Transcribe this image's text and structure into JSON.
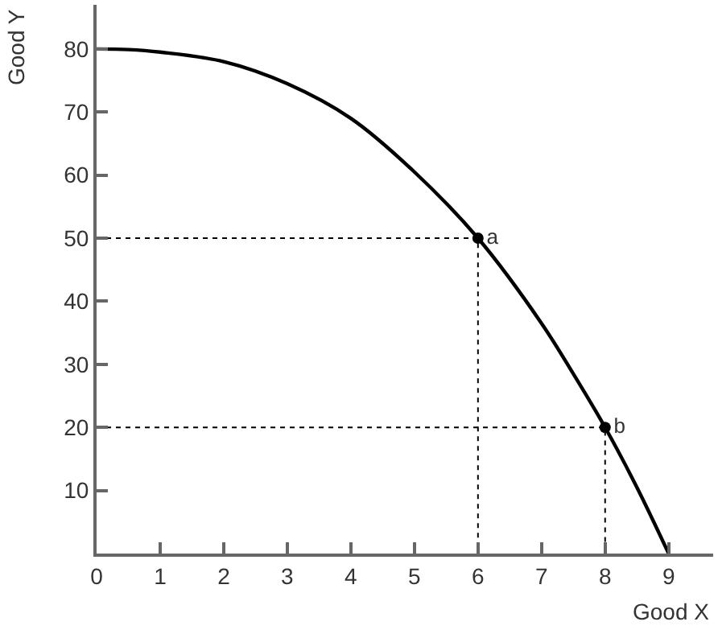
{
  "chart_data": {
    "type": "line",
    "xlabel": "Good X",
    "ylabel": "Good Y",
    "xlim": [
      0,
      9.7
    ],
    "xticks": [
      0,
      1,
      2,
      3,
      4,
      5,
      6,
      7,
      8,
      9
    ],
    "ylim": [
      0,
      87
    ],
    "yticks": [
      10,
      20,
      30,
      40,
      50,
      60,
      70,
      80
    ],
    "series": [
      {
        "color": "#000000",
        "line_style": "dotted",
        "marker": "none",
        "x": [
          0,
          6,
          6
        ],
        "values": [
          50,
          50,
          0
        ]
      },
      {
        "color": "#000000",
        "line_style": "dotted",
        "marker": "none",
        "x": [
          0,
          8,
          8
        ],
        "values": [
          20,
          20,
          0
        ]
      },
      {
        "color": "#000000",
        "line_style": "solid",
        "marker": "none",
        "x": [
          0,
          0.5,
          1,
          2,
          3,
          4,
          5,
          6,
          7,
          7.5,
          8,
          8.5,
          9
        ],
        "values": [
          80,
          79.9,
          79.5,
          78,
          74.5,
          69,
          60.5,
          50,
          36.5,
          28.5,
          20,
          10.5,
          0
        ]
      },
      {
        "type": "scatter",
        "color": "#000000",
        "marker": "circle",
        "x": [
          6,
          8
        ],
        "values": [
          50,
          20
        ],
        "value_labels": [
          "a",
          "b"
        ]
      }
    ]
  }
}
